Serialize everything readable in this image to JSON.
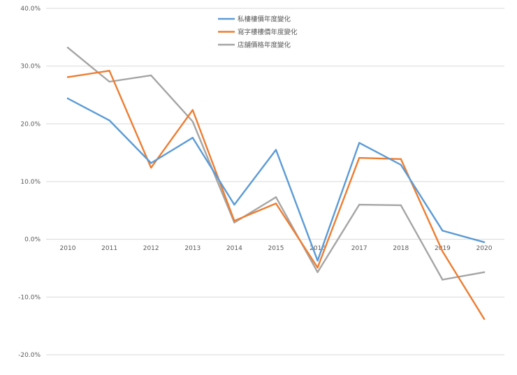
{
  "chart_data": {
    "type": "line",
    "categories": [
      "2010",
      "2011",
      "2012",
      "2013",
      "2014",
      "2015",
      "2016",
      "2017",
      "2018",
      "2019",
      "2020"
    ],
    "y_tick_labels": [
      "40.0%",
      "30.0%",
      "20.0%",
      "10.0%",
      "0.0%",
      "-10.0%",
      "-20.0%"
    ],
    "y_ticks": [
      40,
      30,
      20,
      10,
      0,
      -10,
      -20
    ],
    "ylim": [
      -20,
      40
    ],
    "grid": true,
    "legend_position": "top-center",
    "series": [
      {
        "name": "私樓樓價年度變化",
        "color": "#5b9bd5",
        "values": [
          24.4,
          20.6,
          13.2,
          17.6,
          6.0,
          15.5,
          -3.7,
          16.7,
          12.9,
          1.5,
          -0.5
        ]
      },
      {
        "name": "寫字樓樓價年度變化",
        "color": "#ed7d31",
        "values": [
          28.1,
          29.2,
          12.4,
          22.4,
          3.2,
          6.2,
          -4.9,
          14.1,
          13.9,
          -2.1,
          -13.8
        ]
      },
      {
        "name": "店舖價格年度變化",
        "color": "#a5a5a5",
        "values": [
          33.2,
          27.3,
          28.4,
          20.4,
          2.9,
          7.3,
          -5.7,
          6.0,
          5.9,
          -7.0,
          -5.7
        ]
      }
    ]
  }
}
